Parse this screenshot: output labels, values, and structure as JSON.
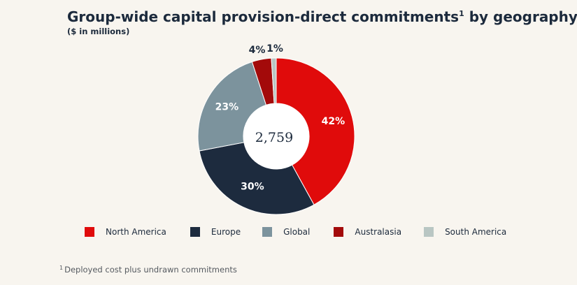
{
  "header": {
    "title": "Group-wide capital provision-direct commitments",
    "title_sup": "1",
    "title_suffix": " by geography",
    "subtitle": "($ in millions)"
  },
  "chart_data": {
    "type": "pie",
    "variant": "donut",
    "center_label": "2,759",
    "slices": [
      {
        "name": "North America",
        "value": 42,
        "label": "42%",
        "color": "#e00b0b",
        "label_color": "#ffffff"
      },
      {
        "name": "Europe",
        "value": 30,
        "label": "30%",
        "color": "#1d2b3e",
        "label_color": "#ffffff"
      },
      {
        "name": "Global",
        "value": 23,
        "label": "23%",
        "color": "#7c939d",
        "label_color": "#ffffff"
      },
      {
        "name": "Australasia",
        "value": 4,
        "label": "4%",
        "color": "#a30a0a",
        "label_color": "#1c2a3c"
      },
      {
        "name": "South America",
        "value": 1,
        "label": "1%",
        "color": "#b9c6c3",
        "label_color": "#1c2a3c"
      }
    ]
  },
  "footnote": {
    "marker": "1",
    "text": "Deployed cost plus undrawn commitments"
  }
}
